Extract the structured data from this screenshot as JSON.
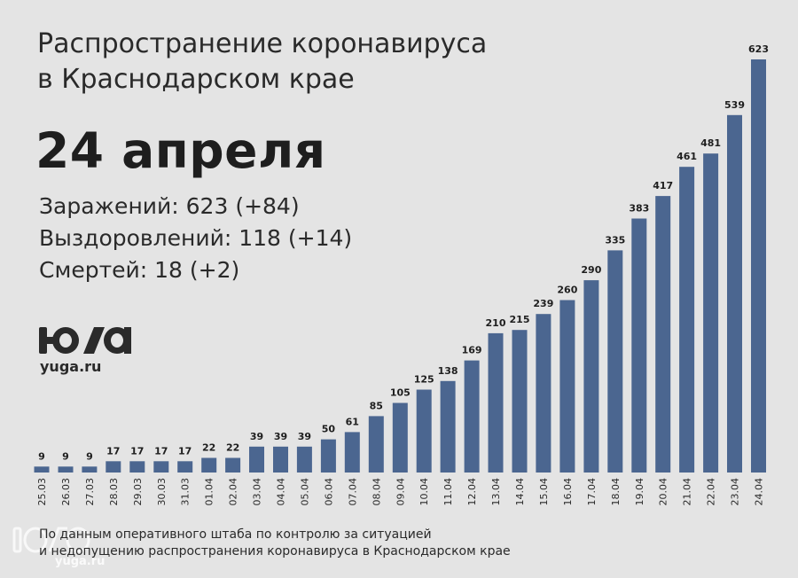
{
  "title_line1": "Распространение коронавируса",
  "title_line2": "в Краснодарском крае",
  "date": "24 апреля",
  "stats": {
    "infected": "Заражений: 623 (+84)",
    "recovered": "Выздоровлений: 118 (+14)",
    "deaths": "Смертей: 18 (+2)"
  },
  "logo_text": "yuga.ru",
  "watermark_text": "yuga.ru",
  "source_line1": "По данным оперативного штаба по контролю за ситуацией",
  "source_line2": "и недопущению распространения коронавируса в Краснодарском крае",
  "colors": {
    "background": "#e4e4e4",
    "bar": "#4b6690",
    "text": "#1e1e1e"
  },
  "chart_data": {
    "type": "bar",
    "categories": [
      "25.03",
      "26.03",
      "27.03",
      "28.03",
      "29.03",
      "30.03",
      "31.03",
      "01.04",
      "02.04",
      "03.04",
      "04.04",
      "05.04",
      "06.04",
      "07.04",
      "08.04",
      "09.04",
      "10.04",
      "11.04",
      "12.04",
      "13.04",
      "14.04",
      "15.04",
      "16.04",
      "17.04",
      "18.04",
      "19.04",
      "20.04",
      "21.04",
      "22.04",
      "23.04",
      "24.04"
    ],
    "values": [
      9,
      9,
      9,
      17,
      17,
      17,
      17,
      22,
      22,
      39,
      39,
      39,
      50,
      61,
      85,
      105,
      125,
      138,
      169,
      210,
      215,
      239,
      260,
      290,
      335,
      383,
      417,
      461,
      481,
      539,
      623
    ],
    "ylim": [
      0,
      623
    ],
    "grid": false,
    "legend": "none"
  }
}
